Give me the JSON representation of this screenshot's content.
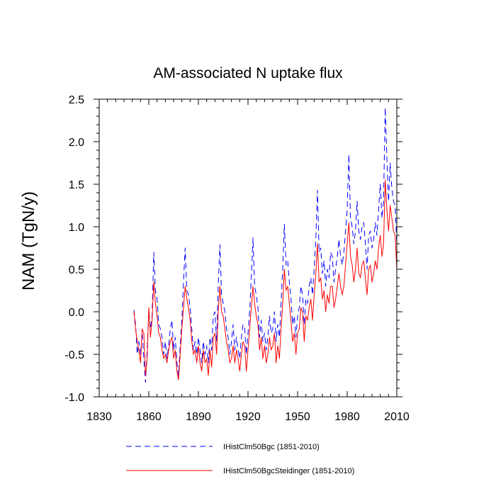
{
  "chart_data": {
    "type": "line",
    "title": "AM-associated N uptake flux",
    "xlabel": "",
    "ylabel": "NAM  (TgN/y)",
    "xlim": [
      1830,
      2010
    ],
    "ylim": [
      -1.0,
      2.5
    ],
    "x_ticks": [
      1830,
      1860,
      1890,
      1920,
      1950,
      1980,
      2010
    ],
    "x_tick_labels": [
      "1830",
      "1860",
      "1890",
      "1920",
      "1950",
      "1980",
      "2010"
    ],
    "y_ticks": [
      -1.0,
      -0.5,
      0.0,
      0.5,
      1.0,
      1.5,
      2.0,
      2.5
    ],
    "y_tick_labels": [
      "-1.0",
      "-0.5",
      "0.0",
      "0.5",
      "1.0",
      "1.5",
      "2.0",
      "2.5"
    ],
    "grid": false,
    "legend_position": "bottom",
    "series": [
      {
        "name": "IHistClm50Bgc (1851-2010)",
        "color": "#0000ff",
        "style": "dashed",
        "x": [
          1851,
          1852,
          1853,
          1854,
          1855,
          1856,
          1857,
          1858,
          1859,
          1860,
          1861,
          1862,
          1863,
          1864,
          1865,
          1866,
          1867,
          1868,
          1869,
          1870,
          1871,
          1872,
          1873,
          1874,
          1875,
          1876,
          1877,
          1878,
          1879,
          1880,
          1881,
          1882,
          1883,
          1884,
          1885,
          1886,
          1887,
          1888,
          1889,
          1890,
          1891,
          1892,
          1893,
          1894,
          1895,
          1896,
          1897,
          1898,
          1899,
          1900,
          1901,
          1902,
          1903,
          1904,
          1905,
          1906,
          1907,
          1908,
          1909,
          1910,
          1911,
          1912,
          1913,
          1914,
          1915,
          1916,
          1917,
          1918,
          1919,
          1920,
          1921,
          1922,
          1923,
          1924,
          1925,
          1926,
          1927,
          1928,
          1929,
          1930,
          1931,
          1932,
          1933,
          1934,
          1935,
          1936,
          1937,
          1938,
          1939,
          1940,
          1941,
          1942,
          1943,
          1944,
          1945,
          1946,
          1947,
          1948,
          1949,
          1950,
          1951,
          1952,
          1953,
          1954,
          1955,
          1956,
          1957,
          1958,
          1959,
          1960,
          1961,
          1962,
          1963,
          1964,
          1965,
          1966,
          1967,
          1968,
          1969,
          1970,
          1971,
          1972,
          1973,
          1974,
          1975,
          1976,
          1977,
          1978,
          1979,
          1980,
          1981,
          1982,
          1983,
          1984,
          1985,
          1986,
          1987,
          1988,
          1989,
          1990,
          1991,
          1992,
          1993,
          1994,
          1995,
          1996,
          1997,
          1998,
          1999,
          2000,
          2001,
          2002,
          2003,
          2004,
          2005,
          2006,
          2007,
          2008,
          2009,
          2010
        ],
        "y": [
          0.02,
          -0.15,
          -0.5,
          -0.35,
          -0.5,
          -0.25,
          -0.55,
          -0.83,
          -0.45,
          0.0,
          -0.2,
          -0.05,
          0.7,
          0.25,
          0.15,
          -0.15,
          -0.2,
          -0.3,
          -0.5,
          -0.35,
          -0.55,
          -0.4,
          -0.2,
          -0.1,
          -0.45,
          -0.3,
          -0.6,
          -0.75,
          -0.4,
          -0.1,
          0.35,
          0.75,
          0.25,
          0.2,
          0.05,
          -0.2,
          -0.45,
          -0.35,
          -0.5,
          -0.3,
          -0.45,
          -0.6,
          -0.35,
          -0.5,
          -0.4,
          -0.6,
          -0.3,
          -0.45,
          -0.05,
          0.0,
          -0.35,
          0.3,
          0.79,
          0.2,
          0.1,
          0.0,
          -0.2,
          -0.3,
          -0.5,
          -0.35,
          -0.15,
          -0.45,
          -0.3,
          -0.45,
          -0.55,
          -0.3,
          -0.15,
          -0.2,
          -0.5,
          -0.25,
          0.0,
          0.4,
          0.87,
          0.3,
          0.2,
          0.05,
          -0.3,
          -0.1,
          -0.35,
          -0.25,
          -0.45,
          -0.3,
          -0.05,
          -0.25,
          -0.2,
          0.0,
          -0.35,
          -0.15,
          -0.3,
          0.1,
          0.5,
          1.03,
          0.55,
          0.6,
          0.35,
          0.15,
          -0.15,
          -0.05,
          -0.3,
          -0.05,
          0.05,
          0.3,
          0.2,
          -0.15,
          0.15,
          0.1,
          0.3,
          0.4,
          0.2,
          0.5,
          0.85,
          1.43,
          0.7,
          0.75,
          0.45,
          0.6,
          0.3,
          0.5,
          0.4,
          0.7,
          0.65,
          0.35,
          0.5,
          0.65,
          0.85,
          0.65,
          0.55,
          0.7,
          0.95,
          1.2,
          1.85,
          1.1,
          1.0,
          0.8,
          0.95,
          1.3,
          0.95,
          0.85,
          1.0,
          1.05,
          0.8,
          0.5,
          0.9,
          0.95,
          0.75,
          0.85,
          1.05,
          0.9,
          1.2,
          1.5,
          1.1,
          1.3,
          2.4,
          1.8,
          1.3,
          1.75,
          1.45,
          1.3,
          1.25,
          0.8
        ]
      },
      {
        "name": "IHistClm50BgcSteidinger (1851-2010)",
        "color": "#ff0000",
        "style": "solid",
        "x": [
          1851,
          1852,
          1853,
          1854,
          1855,
          1856,
          1857,
          1858,
          1859,
          1860,
          1861,
          1862,
          1863,
          1864,
          1865,
          1866,
          1867,
          1868,
          1869,
          1870,
          1871,
          1872,
          1873,
          1874,
          1875,
          1876,
          1877,
          1878,
          1879,
          1880,
          1881,
          1882,
          1883,
          1884,
          1885,
          1886,
          1887,
          1888,
          1889,
          1890,
          1891,
          1892,
          1893,
          1894,
          1895,
          1896,
          1897,
          1898,
          1899,
          1900,
          1901,
          1902,
          1903,
          1904,
          1905,
          1906,
          1907,
          1908,
          1909,
          1910,
          1911,
          1912,
          1913,
          1914,
          1915,
          1916,
          1917,
          1918,
          1919,
          1920,
          1921,
          1922,
          1923,
          1924,
          1925,
          1926,
          1927,
          1928,
          1929,
          1930,
          1931,
          1932,
          1933,
          1934,
          1935,
          1936,
          1937,
          1938,
          1939,
          1940,
          1941,
          1942,
          1943,
          1944,
          1945,
          1946,
          1947,
          1948,
          1949,
          1950,
          1951,
          1952,
          1953,
          1954,
          1955,
          1956,
          1957,
          1958,
          1959,
          1960,
          1961,
          1962,
          1963,
          1964,
          1965,
          1966,
          1967,
          1968,
          1969,
          1970,
          1971,
          1972,
          1973,
          1974,
          1975,
          1976,
          1977,
          1978,
          1979,
          1980,
          1981,
          1982,
          1983,
          1984,
          1985,
          1986,
          1987,
          1988,
          1989,
          1990,
          1991,
          1992,
          1993,
          1994,
          1995,
          1996,
          1997,
          1998,
          1999,
          2000,
          2001,
          2002,
          2003,
          2004,
          2005,
          2006,
          2007,
          2008,
          2009,
          2010
        ],
        "y": [
          0.0,
          -0.2,
          -0.35,
          -0.45,
          -0.6,
          -0.2,
          -0.25,
          -0.75,
          -0.55,
          0.05,
          -0.3,
          -0.1,
          0.35,
          0.1,
          -0.05,
          -0.25,
          -0.3,
          -0.45,
          -0.55,
          -0.5,
          -0.6,
          -0.45,
          -0.35,
          -0.3,
          -0.55,
          -0.45,
          -0.7,
          -0.8,
          -0.5,
          -0.2,
          0.05,
          0.3,
          0.15,
          0.05,
          -0.1,
          -0.35,
          -0.5,
          -0.45,
          -0.6,
          -0.4,
          -0.6,
          -0.7,
          -0.45,
          -0.6,
          -0.55,
          -0.75,
          -0.45,
          -0.65,
          -0.3,
          -0.25,
          -0.5,
          0.0,
          0.3,
          0.0,
          -0.05,
          -0.2,
          -0.35,
          -0.45,
          -0.6,
          -0.55,
          -0.4,
          -0.6,
          -0.45,
          -0.55,
          -0.7,
          -0.5,
          -0.35,
          -0.4,
          -0.7,
          -0.45,
          -0.2,
          0.05,
          0.3,
          0.1,
          -0.05,
          -0.15,
          -0.45,
          -0.3,
          -0.55,
          -0.4,
          -0.6,
          -0.5,
          -0.3,
          -0.45,
          -0.4,
          -0.25,
          -0.6,
          -0.4,
          -0.55,
          -0.2,
          0.1,
          0.5,
          0.25,
          0.3,
          0.1,
          -0.1,
          -0.35,
          -0.25,
          -0.5,
          -0.25,
          -0.2,
          0.05,
          0.0,
          -0.35,
          -0.05,
          -0.1,
          0.05,
          0.15,
          -0.1,
          0.2,
          0.45,
          0.8,
          0.35,
          0.4,
          0.15,
          0.25,
          0.0,
          0.2,
          0.1,
          0.3,
          0.3,
          0.05,
          0.15,
          0.3,
          0.45,
          0.3,
          0.2,
          0.3,
          0.55,
          0.8,
          1.05,
          0.65,
          0.55,
          0.35,
          0.5,
          0.75,
          0.45,
          0.4,
          0.55,
          0.6,
          0.4,
          0.2,
          0.5,
          0.55,
          0.35,
          0.45,
          0.6,
          0.5,
          0.75,
          0.9,
          0.65,
          0.8,
          1.55,
          1.2,
          0.95,
          1.25,
          1.1,
          0.95,
          0.9,
          0.5
        ]
      }
    ]
  }
}
